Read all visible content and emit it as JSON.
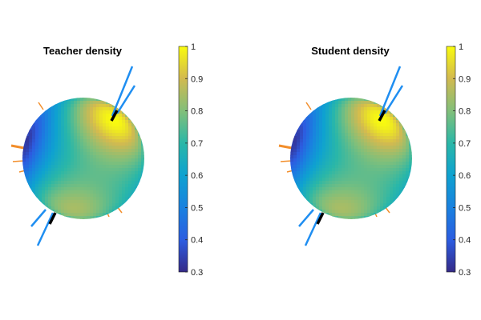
{
  "chart_data": [
    {
      "type": "heatmap",
      "subtype": "sphere-surface",
      "title": "Teacher density",
      "colormap": "parula",
      "colorbar": {
        "min": 0.3,
        "max": 1,
        "ticks": [
          "1",
          "0.9",
          "0.8",
          "0.7",
          "0.6",
          "0.5",
          "0.4",
          "0.3"
        ],
        "tick_values": [
          1,
          0.9,
          0.8,
          0.7,
          0.6,
          0.5,
          0.4,
          0.3
        ]
      },
      "hotspots": [
        {
          "lon": 40,
          "lat": 40,
          "value": 1.0
        },
        {
          "lon": -20,
          "lat": -55,
          "value": 0.85
        }
      ],
      "coldspots": [
        {
          "lon": -75,
          "lat": 15,
          "value": 0.3
        }
      ],
      "base_value": 0.6,
      "colors": {
        "arrow_blue": "#1f8ef1",
        "arrow_black": "#000000",
        "spike_orange": "#f28e2b"
      }
    },
    {
      "type": "heatmap",
      "subtype": "sphere-surface",
      "title": "Student density",
      "colormap": "parula",
      "colorbar": {
        "min": 0.3,
        "max": 1,
        "ticks": [
          "1",
          "0.9",
          "0.8",
          "0.7",
          "0.6",
          "0.5",
          "0.4",
          "0.3"
        ],
        "tick_values": [
          1,
          0.9,
          0.8,
          0.7,
          0.6,
          0.5,
          0.4,
          0.3
        ]
      },
      "hotspots": [
        {
          "lon": 40,
          "lat": 40,
          "value": 1.0
        },
        {
          "lon": -20,
          "lat": -55,
          "value": 0.85
        }
      ],
      "coldspots": [
        {
          "lon": -75,
          "lat": 15,
          "value": 0.3
        }
      ],
      "base_value": 0.6,
      "colors": {
        "arrow_blue": "#1f8ef1",
        "arrow_black": "#000000",
        "spike_orange": "#f28e2b"
      }
    }
  ]
}
